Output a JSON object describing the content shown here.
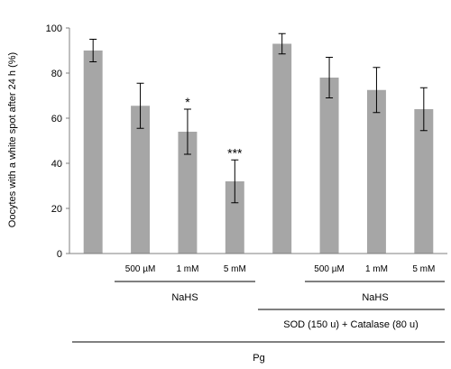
{
  "chart_data": {
    "type": "bar",
    "title": "",
    "xlabel": "",
    "ylabel": "Oocytes with a white spot after 24 h (%)",
    "ylim": [
      0,
      100
    ],
    "yticks": [
      "0",
      "20",
      "40",
      "60",
      "80",
      "100"
    ],
    "grid": false,
    "bar_color": "#a6a6a6",
    "categories": [
      "",
      "500 µM",
      "1 mM",
      "5 mM",
      "",
      "500 µM",
      "1 mM",
      "5 mM"
    ],
    "values": [
      90,
      65.5,
      54,
      32,
      93,
      78,
      72.5,
      64
    ],
    "error_plus": [
      5,
      10,
      10,
      9.5,
      4.5,
      9,
      10,
      9.5
    ],
    "error_minus": [
      5,
      10,
      10,
      9.5,
      4.5,
      9,
      10,
      9.5
    ],
    "significance": [
      "",
      "",
      "*",
      "***",
      "",
      "",
      "",
      ""
    ],
    "group_labels": {
      "nahs_1": "NaHS",
      "nahs_2": "NaHS",
      "sod_catalase": "SOD (150 u) + Catalase (80 u)",
      "pg": "Pg"
    }
  }
}
